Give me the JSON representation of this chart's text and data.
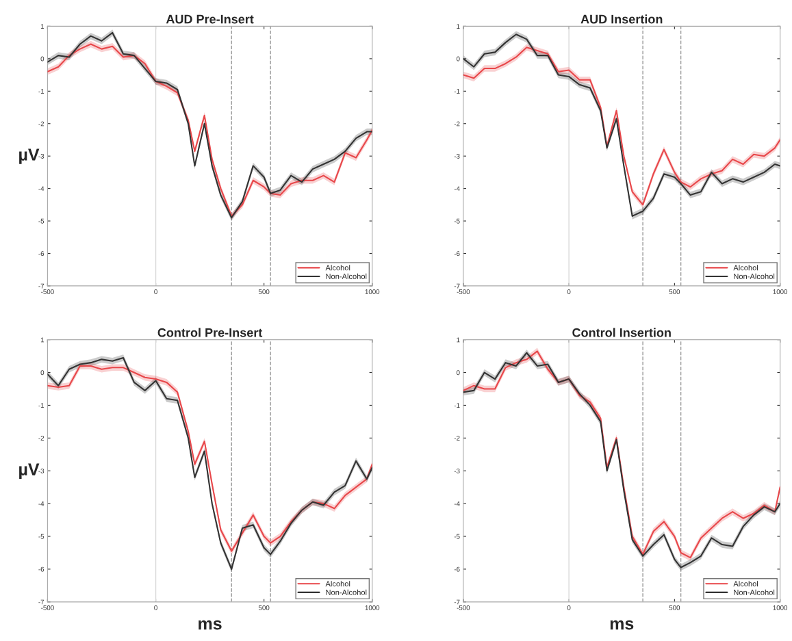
{
  "chart_data": [
    {
      "type": "line",
      "title": "AUD Pre-Insert",
      "ylabel": "µV",
      "x": [
        -500,
        -450,
        -400,
        -350,
        -300,
        -250,
        -200,
        -150,
        -100,
        -50,
        0,
        50,
        100,
        150,
        180,
        225,
        260,
        300,
        350,
        400,
        450,
        500,
        530,
        575,
        625,
        675,
        725,
        775,
        825,
        875,
        925,
        975,
        1000
      ],
      "series": [
        {
          "name": "Alcohol",
          "color": "#e8474a",
          "values": [
            -0.4,
            -0.25,
            0.1,
            0.3,
            0.45,
            0.3,
            0.38,
            0.05,
            0.1,
            -0.15,
            -0.7,
            -0.85,
            -1.05,
            -1.9,
            -2.85,
            -1.75,
            -3.1,
            -4.0,
            -4.85,
            -4.5,
            -3.75,
            -3.95,
            -4.15,
            -4.2,
            -3.85,
            -3.75,
            -3.75,
            -3.6,
            -3.8,
            -2.9,
            -3.05,
            -2.5,
            -2.2
          ],
          "lower": [
            -0.5,
            -0.35,
            0.0,
            0.2,
            0.35,
            0.2,
            0.28,
            -0.05,
            0.0,
            -0.25,
            -0.8,
            -0.95,
            -1.15,
            -2.0,
            -2.95,
            -1.85,
            -3.2,
            -4.1,
            -4.95,
            -4.6,
            -3.85,
            -4.05,
            -4.25,
            -4.3,
            -3.95,
            -3.85,
            -3.85,
            -3.7,
            -3.9,
            -3.0,
            -3.15,
            -2.6,
            -2.3
          ],
          "upper": [
            -0.3,
            -0.15,
            0.2,
            0.4,
            0.55,
            0.4,
            0.48,
            0.15,
            0.2,
            -0.05,
            -0.6,
            -0.75,
            -0.95,
            -1.8,
            -2.75,
            -1.65,
            -3.0,
            -3.9,
            -4.75,
            -4.4,
            -3.65,
            -3.85,
            -4.05,
            -4.1,
            -3.75,
            -3.65,
            -3.65,
            -3.5,
            -3.7,
            -2.8,
            -2.95,
            -2.4,
            -2.1
          ]
        },
        {
          "name": "Non-Alcohol",
          "color": "#333333",
          "values": [
            -0.1,
            0.1,
            0.05,
            0.45,
            0.7,
            0.55,
            0.8,
            0.15,
            0.1,
            -0.3,
            -0.7,
            -0.75,
            -0.95,
            -2.0,
            -3.3,
            -2.0,
            -3.3,
            -4.2,
            -4.9,
            -4.4,
            -3.3,
            -3.65,
            -4.15,
            -4.05,
            -3.6,
            -3.8,
            -3.4,
            -3.25,
            -3.1,
            -2.85,
            -2.45,
            -2.25,
            -2.25
          ],
          "lower": [
            -0.2,
            0.0,
            -0.05,
            0.35,
            0.6,
            0.45,
            0.7,
            0.05,
            0.0,
            -0.4,
            -0.8,
            -0.85,
            -1.05,
            -2.1,
            -3.4,
            -2.1,
            -3.4,
            -4.3,
            -5.0,
            -4.5,
            -3.4,
            -3.75,
            -4.25,
            -4.15,
            -3.7,
            -3.9,
            -3.5,
            -3.35,
            -3.2,
            -2.95,
            -2.55,
            -2.35,
            -2.35
          ],
          "upper": [
            0.0,
            0.2,
            0.15,
            0.55,
            0.8,
            0.65,
            0.9,
            0.25,
            0.2,
            -0.2,
            -0.6,
            -0.65,
            -0.85,
            -1.9,
            -3.2,
            -1.9,
            -3.2,
            -4.1,
            -4.8,
            -4.3,
            -3.2,
            -3.55,
            -4.05,
            -3.95,
            -3.5,
            -3.7,
            -3.3,
            -3.15,
            -3.0,
            -2.75,
            -2.35,
            -2.15,
            -2.15
          ]
        }
      ],
      "xlim": [
        -500,
        1000
      ],
      "ylim": [
        -7,
        1
      ],
      "xticks": [
        -500,
        0,
        500,
        1000
      ],
      "yticks": [
        -7,
        -6,
        -5,
        -4,
        -3,
        -2,
        -1,
        0,
        1
      ],
      "ref_lines": [
        {
          "axis": "x",
          "value": 0,
          "color": "#d9d9d9",
          "line_style": "solid"
        },
        {
          "axis": "x",
          "value": 350,
          "color": "#999999",
          "line_style": "dashed"
        },
        {
          "axis": "x",
          "value": 530,
          "color": "#999999",
          "line_style": "dashed"
        }
      ],
      "legend": "bottom right"
    },
    {
      "type": "line",
      "title": "AUD Insertion",
      "x": [
        -500,
        -450,
        -400,
        -350,
        -300,
        -250,
        -200,
        -150,
        -100,
        -50,
        0,
        50,
        100,
        150,
        180,
        225,
        260,
        300,
        350,
        400,
        450,
        500,
        530,
        575,
        625,
        675,
        725,
        775,
        825,
        875,
        925,
        975,
        1000
      ],
      "series": [
        {
          "name": "Alcohol",
          "color": "#e8474a",
          "values": [
            -0.5,
            -0.6,
            -0.3,
            -0.3,
            -0.15,
            0.05,
            0.35,
            0.25,
            0.15,
            -0.4,
            -0.35,
            -0.65,
            -0.65,
            -1.5,
            -2.7,
            -1.6,
            -3.0,
            -4.1,
            -4.5,
            -3.55,
            -2.8,
            -3.5,
            -3.8,
            -3.95,
            -3.7,
            -3.55,
            -3.45,
            -3.1,
            -3.25,
            -2.95,
            -3.0,
            -2.75,
            -2.5
          ],
          "lower": [
            -0.6,
            -0.7,
            -0.4,
            -0.4,
            -0.25,
            -0.05,
            0.25,
            0.15,
            0.05,
            -0.5,
            -0.45,
            -0.75,
            -0.75,
            -1.6,
            -2.8,
            -1.7,
            -3.1,
            -4.2,
            -4.6,
            -3.65,
            -2.9,
            -3.6,
            -3.9,
            -4.05,
            -3.8,
            -3.65,
            -3.55,
            -3.2,
            -3.35,
            -3.05,
            -3.1,
            -2.85,
            -2.6
          ],
          "upper": [
            -0.4,
            -0.5,
            -0.2,
            -0.2,
            -0.05,
            0.15,
            0.45,
            0.35,
            0.25,
            -0.3,
            -0.25,
            -0.55,
            -0.55,
            -1.4,
            -2.6,
            -1.5,
            -2.9,
            -4.0,
            -4.4,
            -3.45,
            -2.7,
            -3.4,
            -3.7,
            -3.85,
            -3.6,
            -3.45,
            -3.35,
            -3.0,
            -3.15,
            -2.85,
            -2.9,
            -2.65,
            -2.4
          ]
        },
        {
          "name": "Non-Alcohol",
          "color": "#333333",
          "values": [
            0.0,
            -0.25,
            0.15,
            0.2,
            0.5,
            0.75,
            0.6,
            0.1,
            0.1,
            -0.5,
            -0.55,
            -0.8,
            -0.9,
            -1.6,
            -2.75,
            -1.85,
            -3.3,
            -4.85,
            -4.7,
            -4.3,
            -3.55,
            -3.65,
            -3.85,
            -4.2,
            -4.1,
            -3.5,
            -3.85,
            -3.7,
            -3.8,
            -3.65,
            -3.5,
            -3.25,
            -3.3
          ],
          "lower": [
            -0.1,
            -0.35,
            0.05,
            0.1,
            0.4,
            0.65,
            0.5,
            0.0,
            0.0,
            -0.6,
            -0.65,
            -0.9,
            -1.0,
            -1.7,
            -2.85,
            -1.95,
            -3.4,
            -4.95,
            -4.8,
            -4.4,
            -3.65,
            -3.75,
            -3.95,
            -4.3,
            -4.2,
            -3.6,
            -3.95,
            -3.8,
            -3.9,
            -3.75,
            -3.6,
            -3.35,
            -3.4
          ],
          "upper": [
            0.1,
            -0.15,
            0.25,
            0.3,
            0.6,
            0.85,
            0.7,
            0.2,
            0.2,
            -0.4,
            -0.45,
            -0.7,
            -0.8,
            -1.5,
            -2.65,
            -1.75,
            -3.2,
            -4.75,
            -4.6,
            -4.2,
            -3.45,
            -3.55,
            -3.75,
            -4.1,
            -4.0,
            -3.4,
            -3.75,
            -3.6,
            -3.7,
            -3.55,
            -3.4,
            -3.15,
            -3.2
          ]
        }
      ],
      "xlim": [
        -500,
        1000
      ],
      "ylim": [
        -7,
        1
      ],
      "xticks": [
        -500,
        0,
        500,
        1000
      ],
      "yticks": [
        -7,
        -6,
        -5,
        -4,
        -3,
        -2,
        -1,
        0,
        1
      ],
      "ref_lines": [
        {
          "axis": "x",
          "value": 0,
          "color": "#d9d9d9",
          "line_style": "solid"
        },
        {
          "axis": "x",
          "value": 350,
          "color": "#999999",
          "line_style": "dashed"
        },
        {
          "axis": "x",
          "value": 530,
          "color": "#999999",
          "line_style": "dashed"
        }
      ],
      "legend": "bottom right"
    },
    {
      "type": "line",
      "title": "Control Pre-Insert",
      "ylabel": "µV",
      "xlabel": "ms",
      "x": [
        -500,
        -450,
        -400,
        -350,
        -300,
        -250,
        -200,
        -150,
        -100,
        -50,
        0,
        50,
        100,
        150,
        180,
        225,
        260,
        300,
        350,
        400,
        450,
        500,
        530,
        575,
        625,
        675,
        725,
        775,
        825,
        875,
        925,
        975,
        1000
      ],
      "series": [
        {
          "name": "Alcohol",
          "color": "#e8474a",
          "values": [
            -0.4,
            -0.45,
            -0.4,
            0.2,
            0.2,
            0.1,
            0.15,
            0.15,
            0.0,
            -0.15,
            -0.2,
            -0.3,
            -0.6,
            -1.8,
            -2.8,
            -2.1,
            -3.4,
            -4.8,
            -5.45,
            -4.9,
            -4.35,
            -5.0,
            -5.2,
            -5.0,
            -4.55,
            -4.2,
            -3.95,
            -4.0,
            -4.15,
            -3.75,
            -3.5,
            -3.25,
            -2.8
          ],
          "lower": [
            -0.5,
            -0.55,
            -0.5,
            0.1,
            0.1,
            0.0,
            0.05,
            0.05,
            -0.1,
            -0.25,
            -0.3,
            -0.4,
            -0.7,
            -1.9,
            -2.9,
            -2.2,
            -3.5,
            -4.9,
            -5.55,
            -5.0,
            -4.45,
            -5.1,
            -5.3,
            -5.1,
            -4.65,
            -4.3,
            -4.05,
            -4.1,
            -4.25,
            -3.85,
            -3.6,
            -3.35,
            -2.9
          ],
          "upper": [
            -0.3,
            -0.35,
            -0.3,
            0.3,
            0.3,
            0.2,
            0.25,
            0.25,
            0.1,
            -0.05,
            -0.1,
            -0.2,
            -0.5,
            -1.7,
            -2.7,
            -2.0,
            -3.3,
            -4.7,
            -5.35,
            -4.8,
            -4.25,
            -4.9,
            -5.1,
            -4.9,
            -4.45,
            -4.1,
            -3.85,
            -3.9,
            -4.05,
            -3.65,
            -3.4,
            -3.15,
            -2.7
          ]
        },
        {
          "name": "Non-Alcohol",
          "color": "#333333",
          "values": [
            -0.05,
            -0.4,
            0.1,
            0.25,
            0.3,
            0.4,
            0.35,
            0.45,
            -0.3,
            -0.55,
            -0.25,
            -0.8,
            -0.85,
            -2.0,
            -3.2,
            -2.4,
            -4.0,
            -5.2,
            -6.0,
            -4.75,
            -4.65,
            -5.35,
            -5.55,
            -5.15,
            -4.6,
            -4.2,
            -3.95,
            -4.05,
            -3.65,
            -3.45,
            -2.7,
            -3.25,
            -2.9
          ],
          "lower": [
            -0.15,
            -0.5,
            0.0,
            0.15,
            0.2,
            0.3,
            0.25,
            0.35,
            -0.4,
            -0.65,
            -0.35,
            -0.9,
            -0.95,
            -2.1,
            -3.3,
            -2.5,
            -4.1,
            -5.3,
            -6.1,
            -4.85,
            -4.75,
            -5.45,
            -5.65,
            -5.25,
            -4.7,
            -4.3,
            -4.05,
            -4.15,
            -3.75,
            -3.55,
            -2.8,
            -3.35,
            -3.0
          ],
          "upper": [
            0.05,
            -0.3,
            0.2,
            0.35,
            0.4,
            0.5,
            0.45,
            0.55,
            -0.2,
            -0.45,
            -0.15,
            -0.7,
            -0.75,
            -1.9,
            -3.1,
            -2.3,
            -3.9,
            -5.1,
            -5.9,
            -4.65,
            -4.55,
            -5.25,
            -5.45,
            -5.05,
            -4.5,
            -4.1,
            -3.85,
            -3.95,
            -3.55,
            -3.35,
            -2.6,
            -3.15,
            -2.8
          ]
        }
      ],
      "xlim": [
        -500,
        1000
      ],
      "ylim": [
        -7,
        1
      ],
      "xticks": [
        -500,
        0,
        500,
        1000
      ],
      "yticks": [
        -7,
        -6,
        -5,
        -4,
        -3,
        -2,
        -1,
        0,
        1
      ],
      "ref_lines": [
        {
          "axis": "x",
          "value": 0,
          "color": "#d9d9d9",
          "line_style": "solid"
        },
        {
          "axis": "x",
          "value": 350,
          "color": "#999999",
          "line_style": "dashed"
        },
        {
          "axis": "x",
          "value": 530,
          "color": "#999999",
          "line_style": "dashed"
        }
      ],
      "legend": "bottom right"
    },
    {
      "type": "line",
      "title": "Control Insertion",
      "xlabel": "ms",
      "x": [
        -500,
        -450,
        -400,
        -350,
        -300,
        -250,
        -200,
        -150,
        -100,
        -50,
        0,
        50,
        100,
        150,
        180,
        225,
        260,
        300,
        350,
        400,
        450,
        500,
        530,
        575,
        625,
        675,
        725,
        775,
        825,
        875,
        925,
        975,
        1000
      ],
      "series": [
        {
          "name": "Alcohol",
          "color": "#e8474a",
          "values": [
            -0.55,
            -0.4,
            -0.5,
            -0.5,
            0.15,
            0.3,
            0.4,
            0.65,
            0.1,
            -0.3,
            -0.2,
            -0.7,
            -0.9,
            -1.4,
            -2.9,
            -2.0,
            -3.5,
            -5.0,
            -5.55,
            -4.85,
            -4.55,
            -5.0,
            -5.5,
            -5.65,
            -5.05,
            -4.75,
            -4.45,
            -4.25,
            -4.45,
            -4.3,
            -4.05,
            -4.25,
            -3.5
          ],
          "lower": [
            -0.65,
            -0.5,
            -0.6,
            -0.6,
            0.05,
            0.2,
            0.3,
            0.55,
            0.0,
            -0.4,
            -0.3,
            -0.8,
            -1.0,
            -1.5,
            -3.0,
            -2.1,
            -3.6,
            -5.1,
            -5.65,
            -4.95,
            -4.65,
            -5.1,
            -5.6,
            -5.75,
            -5.15,
            -4.85,
            -4.55,
            -4.35,
            -4.55,
            -4.4,
            -4.15,
            -4.35,
            -3.6
          ],
          "upper": [
            -0.45,
            -0.3,
            -0.4,
            -0.4,
            0.25,
            0.4,
            0.5,
            0.75,
            0.2,
            -0.2,
            -0.1,
            -0.6,
            -0.8,
            -1.3,
            -2.8,
            -1.9,
            -3.4,
            -4.9,
            -5.45,
            -4.75,
            -4.45,
            -4.9,
            -5.4,
            -5.55,
            -4.95,
            -4.65,
            -4.35,
            -4.15,
            -4.35,
            -4.2,
            -3.95,
            -4.15,
            -3.4
          ]
        },
        {
          "name": "Non-Alcohol",
          "color": "#333333",
          "values": [
            -0.6,
            -0.55,
            0.0,
            -0.2,
            0.3,
            0.2,
            0.6,
            0.2,
            0.25,
            -0.3,
            -0.2,
            -0.65,
            -1.0,
            -1.5,
            -3.0,
            -2.05,
            -3.6,
            -5.1,
            -5.6,
            -5.25,
            -4.95,
            -5.7,
            -5.95,
            -5.8,
            -5.6,
            -5.05,
            -5.25,
            -5.3,
            -4.7,
            -4.35,
            -4.1,
            -4.25,
            -4.0
          ],
          "lower": [
            -0.7,
            -0.65,
            -0.1,
            -0.3,
            0.2,
            0.1,
            0.5,
            0.1,
            0.15,
            -0.4,
            -0.3,
            -0.75,
            -1.1,
            -1.6,
            -3.1,
            -2.15,
            -3.7,
            -5.2,
            -5.7,
            -5.35,
            -5.05,
            -5.8,
            -6.05,
            -5.9,
            -5.7,
            -5.15,
            -5.35,
            -5.4,
            -4.8,
            -4.45,
            -4.2,
            -4.35,
            -4.1
          ],
          "upper": [
            -0.5,
            -0.45,
            0.1,
            -0.1,
            0.4,
            0.3,
            0.7,
            0.3,
            0.35,
            -0.2,
            -0.1,
            -0.55,
            -0.9,
            -1.4,
            -2.9,
            -1.95,
            -3.5,
            -5.0,
            -5.5,
            -5.15,
            -4.85,
            -5.6,
            -5.85,
            -5.7,
            -5.5,
            -4.95,
            -5.15,
            -5.2,
            -4.6,
            -4.25,
            -4.0,
            -4.15,
            -3.9
          ]
        }
      ],
      "xlim": [
        -500,
        1000
      ],
      "ylim": [
        -7,
        1
      ],
      "xticks": [
        -500,
        0,
        500,
        1000
      ],
      "yticks": [
        -7,
        -6,
        -5,
        -4,
        -3,
        -2,
        -1,
        0,
        1
      ],
      "ref_lines": [
        {
          "axis": "x",
          "value": 0,
          "color": "#d9d9d9",
          "line_style": "solid"
        },
        {
          "axis": "x",
          "value": 350,
          "color": "#999999",
          "line_style": "dashed"
        },
        {
          "axis": "x",
          "value": 530,
          "color": "#999999",
          "line_style": "dashed"
        }
      ],
      "legend": "bottom right"
    }
  ]
}
